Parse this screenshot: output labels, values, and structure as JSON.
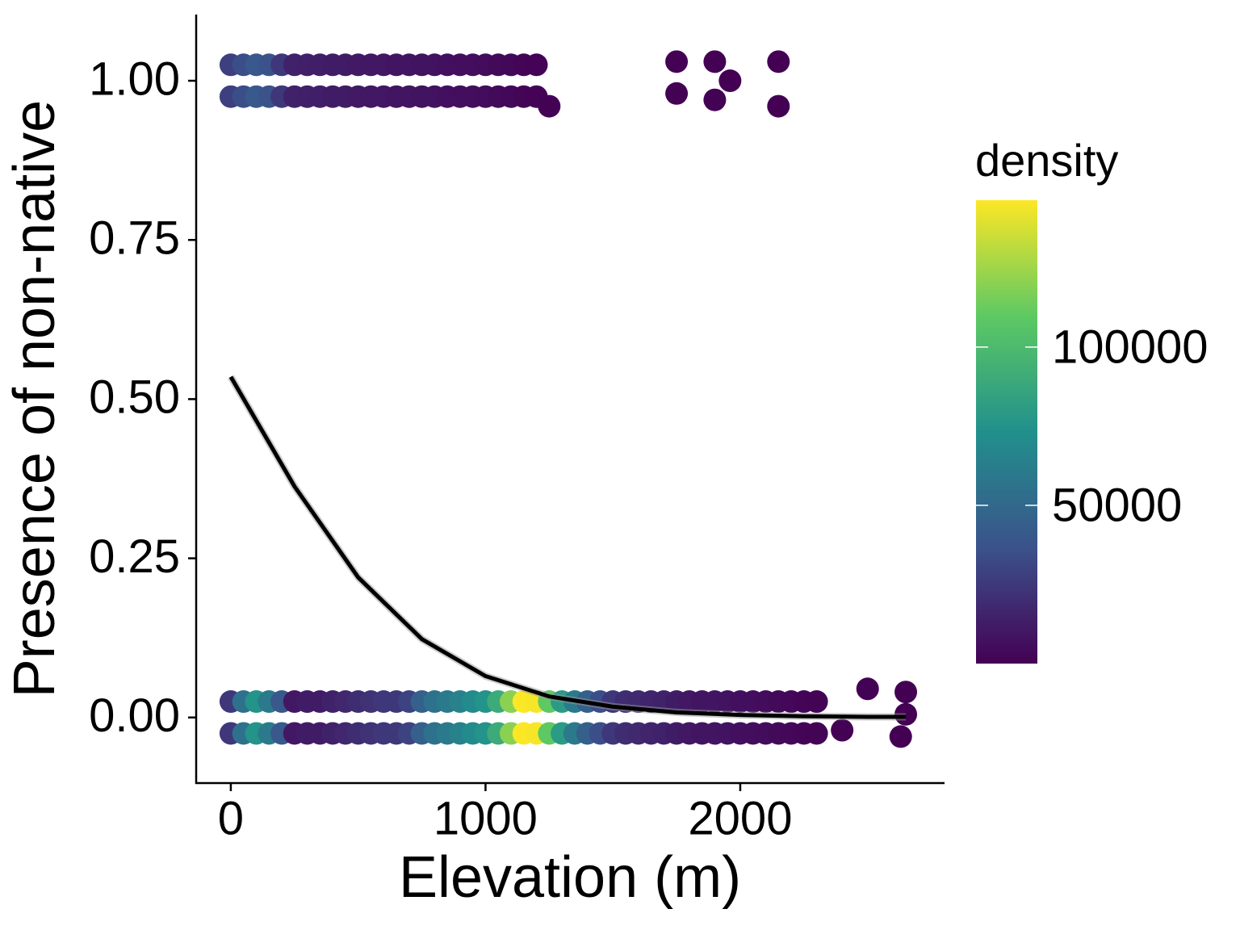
{
  "chart_data": {
    "type": "scatter",
    "x_label": "Elevation (m)",
    "y_label": "Presence of non-native",
    "xlim": [
      -136,
      2802
    ],
    "ylim": [
      -0.103,
      1.104
    ],
    "xticks": [
      0,
      1000,
      2000
    ],
    "yticks": [
      {
        "value": 0,
        "label": "0.00"
      },
      {
        "value": 0.25,
        "label": "0.25"
      },
      {
        "value": 0.5,
        "label": "0.50"
      },
      {
        "value": 0.75,
        "label": "0.75"
      },
      {
        "value": 1,
        "label": "1.00"
      }
    ],
    "points": [
      [
        0,
        -0.025,
        25000
      ],
      [
        0,
        0.025,
        25000
      ],
      [
        50,
        -0.025,
        55000
      ],
      [
        50,
        0.025,
        55000
      ],
      [
        100,
        -0.025,
        75000
      ],
      [
        100,
        0.025,
        75000
      ],
      [
        150,
        -0.025,
        60000
      ],
      [
        150,
        0.025,
        60000
      ],
      [
        200,
        -0.025,
        40000
      ],
      [
        200,
        0.025,
        40000
      ],
      [
        250,
        -0.025,
        10000
      ],
      [
        250,
        0.025,
        10000
      ],
      [
        300,
        -0.025,
        12000
      ],
      [
        300,
        0.025,
        12000
      ],
      [
        350,
        -0.025,
        12000
      ],
      [
        350,
        0.025,
        12000
      ],
      [
        400,
        -0.025,
        15000
      ],
      [
        400,
        0.025,
        15000
      ],
      [
        450,
        -0.025,
        17000
      ],
      [
        450,
        0.025,
        17000
      ],
      [
        500,
        -0.025,
        20000
      ],
      [
        500,
        0.025,
        20000
      ],
      [
        550,
        -0.025,
        22000
      ],
      [
        550,
        0.025,
        22000
      ],
      [
        600,
        -0.025,
        25000
      ],
      [
        600,
        0.025,
        25000
      ],
      [
        650,
        -0.025,
        25000
      ],
      [
        650,
        0.025,
        25000
      ],
      [
        700,
        -0.025,
        30000
      ],
      [
        700,
        0.025,
        30000
      ],
      [
        750,
        -0.025,
        45000
      ],
      [
        750,
        0.025,
        45000
      ],
      [
        800,
        -0.025,
        55000
      ],
      [
        800,
        0.025,
        55000
      ],
      [
        850,
        -0.025,
        60000
      ],
      [
        850,
        0.025,
        60000
      ],
      [
        900,
        -0.025,
        65000
      ],
      [
        900,
        0.025,
        65000
      ],
      [
        950,
        -0.025,
        70000
      ],
      [
        950,
        0.025,
        70000
      ],
      [
        1000,
        -0.025,
        75000
      ],
      [
        1000,
        0.025,
        75000
      ],
      [
        1050,
        -0.025,
        90000
      ],
      [
        1050,
        0.025,
        90000
      ],
      [
        1100,
        -0.025,
        120000
      ],
      [
        1100,
        0.025,
        120000
      ],
      [
        1150,
        -0.025,
        146000
      ],
      [
        1150,
        0.025,
        146000
      ],
      [
        1200,
        -0.025,
        145000
      ],
      [
        1200,
        0.025,
        145000
      ],
      [
        1250,
        -0.025,
        110000
      ],
      [
        1250,
        0.025,
        110000
      ],
      [
        1300,
        -0.025,
        80000
      ],
      [
        1300,
        0.025,
        80000
      ],
      [
        1350,
        -0.025,
        60000
      ],
      [
        1350,
        0.025,
        60000
      ],
      [
        1400,
        -0.025,
        45000
      ],
      [
        1400,
        0.025,
        45000
      ],
      [
        1450,
        -0.025,
        35000
      ],
      [
        1450,
        0.025,
        35000
      ],
      [
        1500,
        -0.025,
        25000
      ],
      [
        1500,
        0.025,
        25000
      ],
      [
        1550,
        -0.025,
        20000
      ],
      [
        1550,
        0.025,
        20000
      ],
      [
        1600,
        -0.025,
        18000
      ],
      [
        1600,
        0.025,
        18000
      ],
      [
        1650,
        -0.025,
        16000
      ],
      [
        1650,
        0.025,
        16000
      ],
      [
        1700,
        -0.025,
        15000
      ],
      [
        1700,
        0.025,
        15000
      ],
      [
        1750,
        -0.025,
        12000
      ],
      [
        1750,
        0.025,
        12000
      ],
      [
        1800,
        -0.025,
        10000
      ],
      [
        1800,
        0.025,
        10000
      ],
      [
        1850,
        -0.025,
        9000
      ],
      [
        1850,
        0.025,
        9000
      ],
      [
        1900,
        -0.025,
        9000
      ],
      [
        1900,
        0.025,
        9000
      ],
      [
        1950,
        -0.025,
        8000
      ],
      [
        1950,
        0.025,
        8000
      ],
      [
        2000,
        -0.025,
        7000
      ],
      [
        2000,
        0.025,
        7000
      ],
      [
        2050,
        -0.025,
        6000
      ],
      [
        2050,
        0.025,
        6000
      ],
      [
        2100,
        -0.025,
        5000
      ],
      [
        2100,
        0.025,
        5000
      ],
      [
        2150,
        -0.025,
        4000
      ],
      [
        2150,
        0.025,
        4000
      ],
      [
        2200,
        -0.025,
        3000
      ],
      [
        2200,
        0.025,
        3000
      ],
      [
        2250,
        -0.025,
        2000
      ],
      [
        2250,
        0.025,
        2000
      ],
      [
        2300,
        -0.025,
        1500
      ],
      [
        2300,
        0.025,
        1500
      ],
      [
        2400,
        -0.02,
        500
      ],
      [
        2500,
        0.045,
        300
      ],
      [
        2650,
        0.04,
        200
      ],
      [
        2650,
        0.005,
        200
      ],
      [
        2630,
        -0.03,
        200
      ],
      [
        0,
        0.975,
        28000
      ],
      [
        0,
        1.025,
        28000
      ],
      [
        50,
        0.975,
        35000
      ],
      [
        50,
        1.025,
        35000
      ],
      [
        100,
        0.975,
        40000
      ],
      [
        100,
        1.025,
        40000
      ],
      [
        150,
        0.975,
        38000
      ],
      [
        150,
        1.025,
        38000
      ],
      [
        200,
        0.975,
        25000
      ],
      [
        200,
        1.025,
        25000
      ],
      [
        250,
        0.975,
        15000
      ],
      [
        250,
        1.025,
        15000
      ],
      [
        300,
        0.975,
        14000
      ],
      [
        300,
        1.025,
        14000
      ],
      [
        350,
        0.975,
        13000
      ],
      [
        350,
        1.025,
        13000
      ],
      [
        400,
        0.975,
        12000
      ],
      [
        400,
        1.025,
        12000
      ],
      [
        450,
        0.975,
        12000
      ],
      [
        450,
        1.025,
        12000
      ],
      [
        500,
        0.975,
        11000
      ],
      [
        500,
        1.025,
        11000
      ],
      [
        550,
        0.975,
        10000
      ],
      [
        550,
        1.025,
        10000
      ],
      [
        600,
        0.975,
        10000
      ],
      [
        600,
        1.025,
        10000
      ],
      [
        650,
        0.975,
        9000
      ],
      [
        650,
        1.025,
        9000
      ],
      [
        700,
        0.975,
        9000
      ],
      [
        700,
        1.025,
        9000
      ],
      [
        750,
        0.975,
        8000
      ],
      [
        750,
        1.025,
        8000
      ],
      [
        800,
        0.975,
        8000
      ],
      [
        800,
        1.025,
        8000
      ],
      [
        850,
        0.975,
        7000
      ],
      [
        850,
        1.025,
        7000
      ],
      [
        900,
        0.975,
        6000
      ],
      [
        900,
        1.025,
        6000
      ],
      [
        950,
        0.975,
        6000
      ],
      [
        950,
        1.025,
        6000
      ],
      [
        1000,
        0.975,
        5000
      ],
      [
        1000,
        1.025,
        5000
      ],
      [
        1050,
        0.975,
        4000
      ],
      [
        1050,
        1.025,
        4000
      ],
      [
        1100,
        0.975,
        3000
      ],
      [
        1100,
        1.025,
        3000
      ],
      [
        1150,
        0.975,
        2000
      ],
      [
        1150,
        1.025,
        2000
      ],
      [
        1200,
        0.975,
        1000
      ],
      [
        1200,
        1.025,
        1000
      ],
      [
        1250,
        0.96,
        500
      ],
      [
        1750,
        0.98,
        300
      ],
      [
        1750,
        1.03,
        300
      ],
      [
        1900,
        0.97,
        300
      ],
      [
        1900,
        1.03,
        300
      ],
      [
        1960,
        1.0,
        200
      ],
      [
        2150,
        0.96,
        200
      ],
      [
        2150,
        1.03,
        200
      ]
    ],
    "fit": {
      "x": [
        0,
        250,
        500,
        750,
        1000,
        1250,
        1500,
        1750,
        2000,
        2250,
        2500,
        2650
      ],
      "y": [
        0.535,
        0.363,
        0.22,
        0.123,
        0.065,
        0.033,
        0.017,
        0.008,
        0.004,
        0.002,
        0.001,
        0.001
      ]
    },
    "colorbar": {
      "title": "density",
      "lim": [
        0,
        146400
      ],
      "ticks": [
        50000,
        100000
      ]
    }
  }
}
